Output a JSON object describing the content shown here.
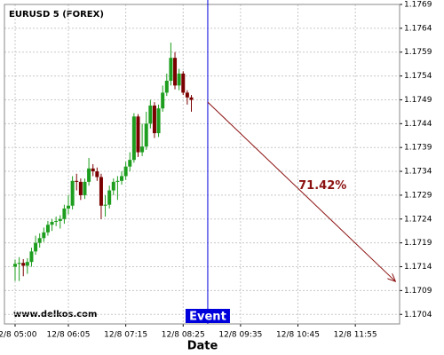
{
  "chart_data": {
    "type": "candlestick",
    "title": "EURUSD 5 (FOREX)",
    "x_label": "Date",
    "watermark": "www.delkos.com",
    "up_color": "#1e9e1e",
    "down_color": "#7a0000",
    "grid": true,
    "x": [
      300,
      305,
      310,
      315,
      320,
      325,
      330,
      335,
      340,
      345,
      350,
      355,
      360,
      365,
      370,
      375,
      380,
      385,
      390,
      395,
      400,
      405,
      410,
      415,
      420,
      425,
      430,
      435,
      440,
      445,
      450,
      455,
      460,
      465,
      470,
      475,
      480,
      485,
      490,
      495,
      500,
      505,
      510,
      515
    ],
    "open": [
      1.1714,
      1.17146,
      1.17148,
      1.17142,
      1.1715,
      1.17172,
      1.1719,
      1.172,
      1.17212,
      1.17228,
      1.17234,
      1.17236,
      1.1724,
      1.17262,
      1.17268,
      1.1732,
      1.17318,
      1.1729,
      1.17318,
      1.17346,
      1.1734,
      1.17328,
      1.17268,
      1.1727,
      1.173,
      1.17318,
      1.1732,
      1.1733,
      1.1735,
      1.17364,
      1.17455,
      1.1738,
      1.17392,
      1.1744,
      1.17478,
      1.1742,
      1.17472,
      1.17505,
      1.1753,
      1.17578,
      1.1752,
      1.17545,
      1.17505,
      1.17495
    ],
    "high": [
      1.17155,
      1.1716,
      1.17156,
      1.17158,
      1.1718,
      1.17205,
      1.1721,
      1.17222,
      1.17236,
      1.1724,
      1.17245,
      1.17248,
      1.1727,
      1.1729,
      1.1733,
      1.17335,
      1.17325,
      1.17325,
      1.17368,
      1.17355,
      1.17348,
      1.17335,
      1.1729,
      1.1731,
      1.17325,
      1.1733,
      1.1734,
      1.1736,
      1.1738,
      1.17462,
      1.1746,
      1.1744,
      1.17465,
      1.1749,
      1.17485,
      1.1748,
      1.1752,
      1.17545,
      1.1761,
      1.1759,
      1.17555,
      1.1755,
      1.1751,
      1.175
    ],
    "low": [
      1.1711,
      1.1711,
      1.1712,
      1.17125,
      1.1714,
      1.17165,
      1.1718,
      1.17192,
      1.17205,
      1.17215,
      1.17225,
      1.1722,
      1.1723,
      1.1725,
      1.1726,
      1.173,
      1.1728,
      1.17282,
      1.1731,
      1.1733,
      1.1732,
      1.1724,
      1.17245,
      1.17262,
      1.1729,
      1.1728,
      1.17312,
      1.17322,
      1.1734,
      1.17358,
      1.1737,
      1.17372,
      1.17385,
      1.1743,
      1.1741,
      1.17412,
      1.17465,
      1.17498,
      1.1752,
      1.17512,
      1.1751,
      1.175,
      1.1748,
      1.17465
    ],
    "close": [
      1.17146,
      1.17148,
      1.17142,
      1.1715,
      1.17172,
      1.1719,
      1.172,
      1.17212,
      1.17228,
      1.17234,
      1.17236,
      1.1724,
      1.17262,
      1.17268,
      1.1732,
      1.17318,
      1.1729,
      1.17318,
      1.17346,
      1.1734,
      1.17328,
      1.17268,
      1.1727,
      1.173,
      1.17318,
      1.1732,
      1.1733,
      1.1735,
      1.17364,
      1.17455,
      1.1738,
      1.17392,
      1.1744,
      1.17478,
      1.1742,
      1.17472,
      1.17505,
      1.1753,
      1.17578,
      1.1752,
      1.17545,
      1.17505,
      1.17495,
      1.1749
    ],
    "xlim": [
      287,
      769
    ],
    "xticks": [
      {
        "value": 300,
        "label": "12/8 05:00"
      },
      {
        "value": 365,
        "label": "12/8 06:05"
      },
      {
        "value": 435,
        "label": "12/8 07:15"
      },
      {
        "value": 505,
        "label": "12/8 08:25"
      },
      {
        "value": 575,
        "label": "12/8 09:35"
      },
      {
        "value": 645,
        "label": "12/8 10:45"
      },
      {
        "value": 715,
        "label": "12/8 11:55"
      }
    ],
    "ylim": [
      1.1702,
      1.1769
    ],
    "yticks": [
      1.1704,
      1.1709,
      1.1714,
      1.1719,
      1.1724,
      1.1729,
      1.1734,
      1.1739,
      1.1744,
      1.1749,
      1.1754,
      1.1759,
      1.1764,
      1.1769
    ],
    "event": {
      "x": 535,
      "label": "Event",
      "color": "#0000dd"
    },
    "arrow": {
      "x": [
        535,
        764
      ],
      "y": [
        1.17485,
        1.17109
      ],
      "color": "#8b1010"
    },
    "annotation": {
      "text": "71.42%",
      "x": 675,
      "y": 1.17309,
      "color": "#8b1010"
    }
  }
}
